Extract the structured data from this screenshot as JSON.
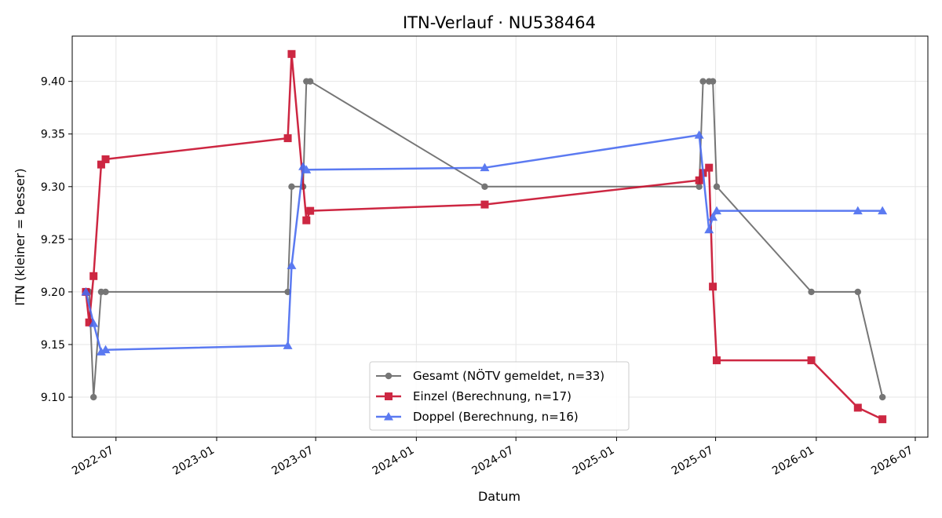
{
  "chart_data": {
    "type": "line",
    "title": "ITN-Verlauf · NU538464",
    "xlabel": "Datum",
    "ylabel": "ITN  (kleiner = besser)",
    "xlim": [
      "2022-04-12",
      "2026-07-24"
    ],
    "ylim": [
      9.062,
      9.443
    ],
    "grid": true,
    "legend_position": "lower center",
    "x_ticks": [
      "2022-07",
      "2023-01",
      "2023-07",
      "2024-01",
      "2024-07",
      "2025-01",
      "2025-07",
      "2026-01",
      "2026-07"
    ],
    "y_ticks": [
      "9.10",
      "9.15",
      "9.20",
      "9.25",
      "9.30",
      "9.35",
      "9.40"
    ],
    "series": [
      {
        "name": "Gesamt (NÖTV gemeldet, n=33)",
        "color": "#555555",
        "marker": "circle",
        "points": [
          [
            "2022-05-07",
            9.2
          ],
          [
            "2022-05-13",
            9.2
          ],
          [
            "2022-05-21",
            9.1
          ],
          [
            "2022-06-04",
            9.2
          ],
          [
            "2022-06-12",
            9.2
          ],
          [
            "2023-05-11",
            9.2
          ],
          [
            "2023-05-18",
            9.3
          ],
          [
            "2023-06-08",
            9.3
          ],
          [
            "2023-06-14",
            9.4
          ],
          [
            "2023-06-21",
            9.4
          ],
          [
            "2024-05-05",
            9.3
          ],
          [
            "2025-06-01",
            9.3
          ],
          [
            "2025-06-08",
            9.4
          ],
          [
            "2025-06-19",
            9.4
          ],
          [
            "2025-06-26",
            9.4
          ],
          [
            "2025-07-03",
            9.3
          ],
          [
            "2025-12-23",
            9.2
          ],
          [
            "2026-03-18",
            9.2
          ],
          [
            "2026-05-02",
            9.1
          ]
        ]
      },
      {
        "name": "Einzel (Berechnung, n=17)",
        "color": "#c8102e",
        "marker": "square",
        "points": [
          [
            "2022-05-07",
            9.2
          ],
          [
            "2022-05-13",
            9.171
          ],
          [
            "2022-05-21",
            9.215
          ],
          [
            "2022-06-04",
            9.321
          ],
          [
            "2022-06-12",
            9.326
          ],
          [
            "2023-05-11",
            9.346
          ],
          [
            "2023-05-18",
            9.426
          ],
          [
            "2023-06-14",
            9.268
          ],
          [
            "2023-06-21",
            9.277
          ],
          [
            "2024-05-05",
            9.283
          ],
          [
            "2025-06-01",
            9.306
          ],
          [
            "2025-06-08",
            9.313
          ],
          [
            "2025-06-19",
            9.318
          ],
          [
            "2025-06-26",
            9.205
          ],
          [
            "2025-07-03",
            9.135
          ],
          [
            "2025-12-23",
            9.135
          ],
          [
            "2026-03-18",
            9.09
          ],
          [
            "2026-05-02",
            9.079
          ]
        ]
      },
      {
        "name": "Doppel (Berechnung, n=16)",
        "color": "#4a6cf0",
        "marker": "triangle",
        "points": [
          [
            "2022-05-07",
            9.2
          ],
          [
            "2022-05-21",
            9.17
          ],
          [
            "2022-06-04",
            9.143
          ],
          [
            "2022-06-12",
            9.145
          ],
          [
            "2023-05-11",
            9.149
          ],
          [
            "2023-05-18",
            9.225
          ],
          [
            "2023-06-08",
            9.319
          ],
          [
            "2023-06-14",
            9.316
          ],
          [
            "2024-05-05",
            9.318
          ],
          [
            "2025-06-01",
            9.349
          ],
          [
            "2025-06-19",
            9.259
          ],
          [
            "2025-06-26",
            9.271
          ],
          [
            "2025-07-03",
            9.277
          ],
          [
            "2026-03-18",
            9.277
          ],
          [
            "2026-05-02",
            9.277
          ]
        ]
      }
    ]
  }
}
